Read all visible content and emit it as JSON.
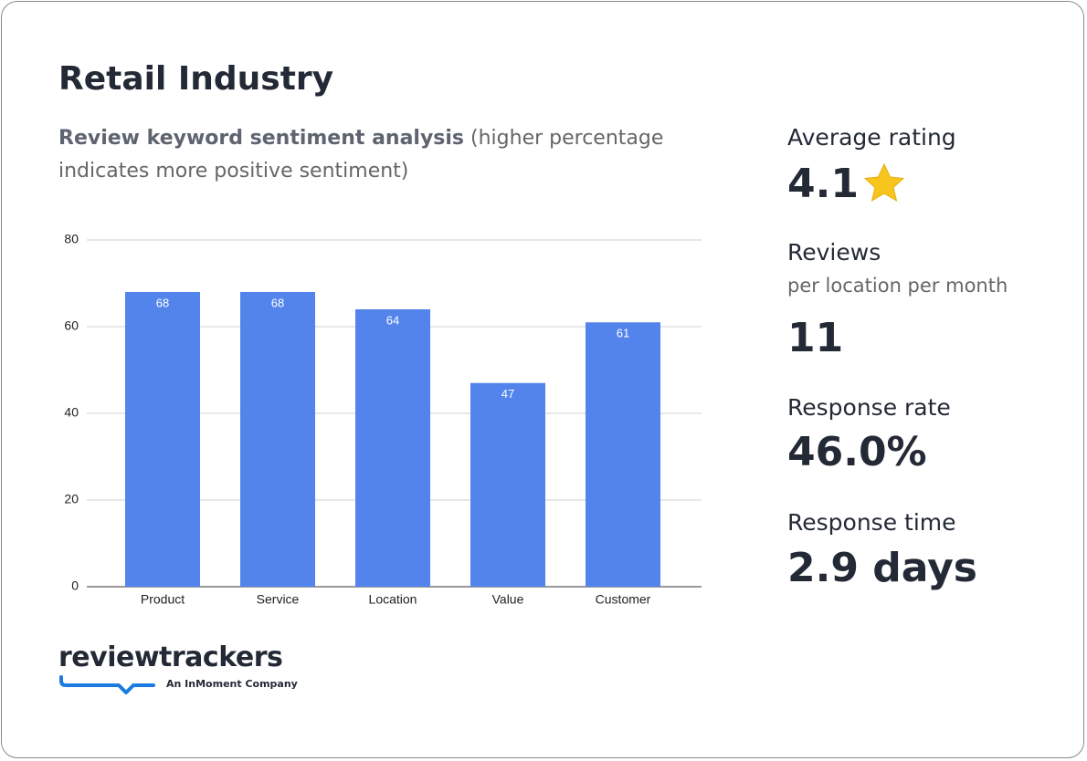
{
  "header": {
    "title": "Retail Industry",
    "subtitle_bold": "Review keyword sentiment analysis",
    "subtitle_rest": "(higher percentage indicates more positive sentiment)"
  },
  "chart_data": {
    "type": "bar",
    "categories": [
      "Product",
      "Service",
      "Location",
      "Value",
      "Customer"
    ],
    "values": [
      68,
      68,
      64,
      47,
      61
    ],
    "color": "#5384ec",
    "ylim": [
      0,
      80
    ],
    "yticks": [
      0,
      20,
      40,
      60,
      80
    ],
    "grid": true,
    "data_labels": true
  },
  "stats": {
    "average_rating": {
      "label": "Average rating",
      "value": "4.1"
    },
    "reviews": {
      "label": "Reviews",
      "sublabel": "per location per month",
      "value": "11"
    },
    "response_rate": {
      "label": "Response rate",
      "value": "46.0%"
    },
    "response_time": {
      "label": "Response time",
      "value": "2.9 days"
    }
  },
  "logo": {
    "name": "reviewtrackers",
    "tagline": "An InMoment Company"
  }
}
